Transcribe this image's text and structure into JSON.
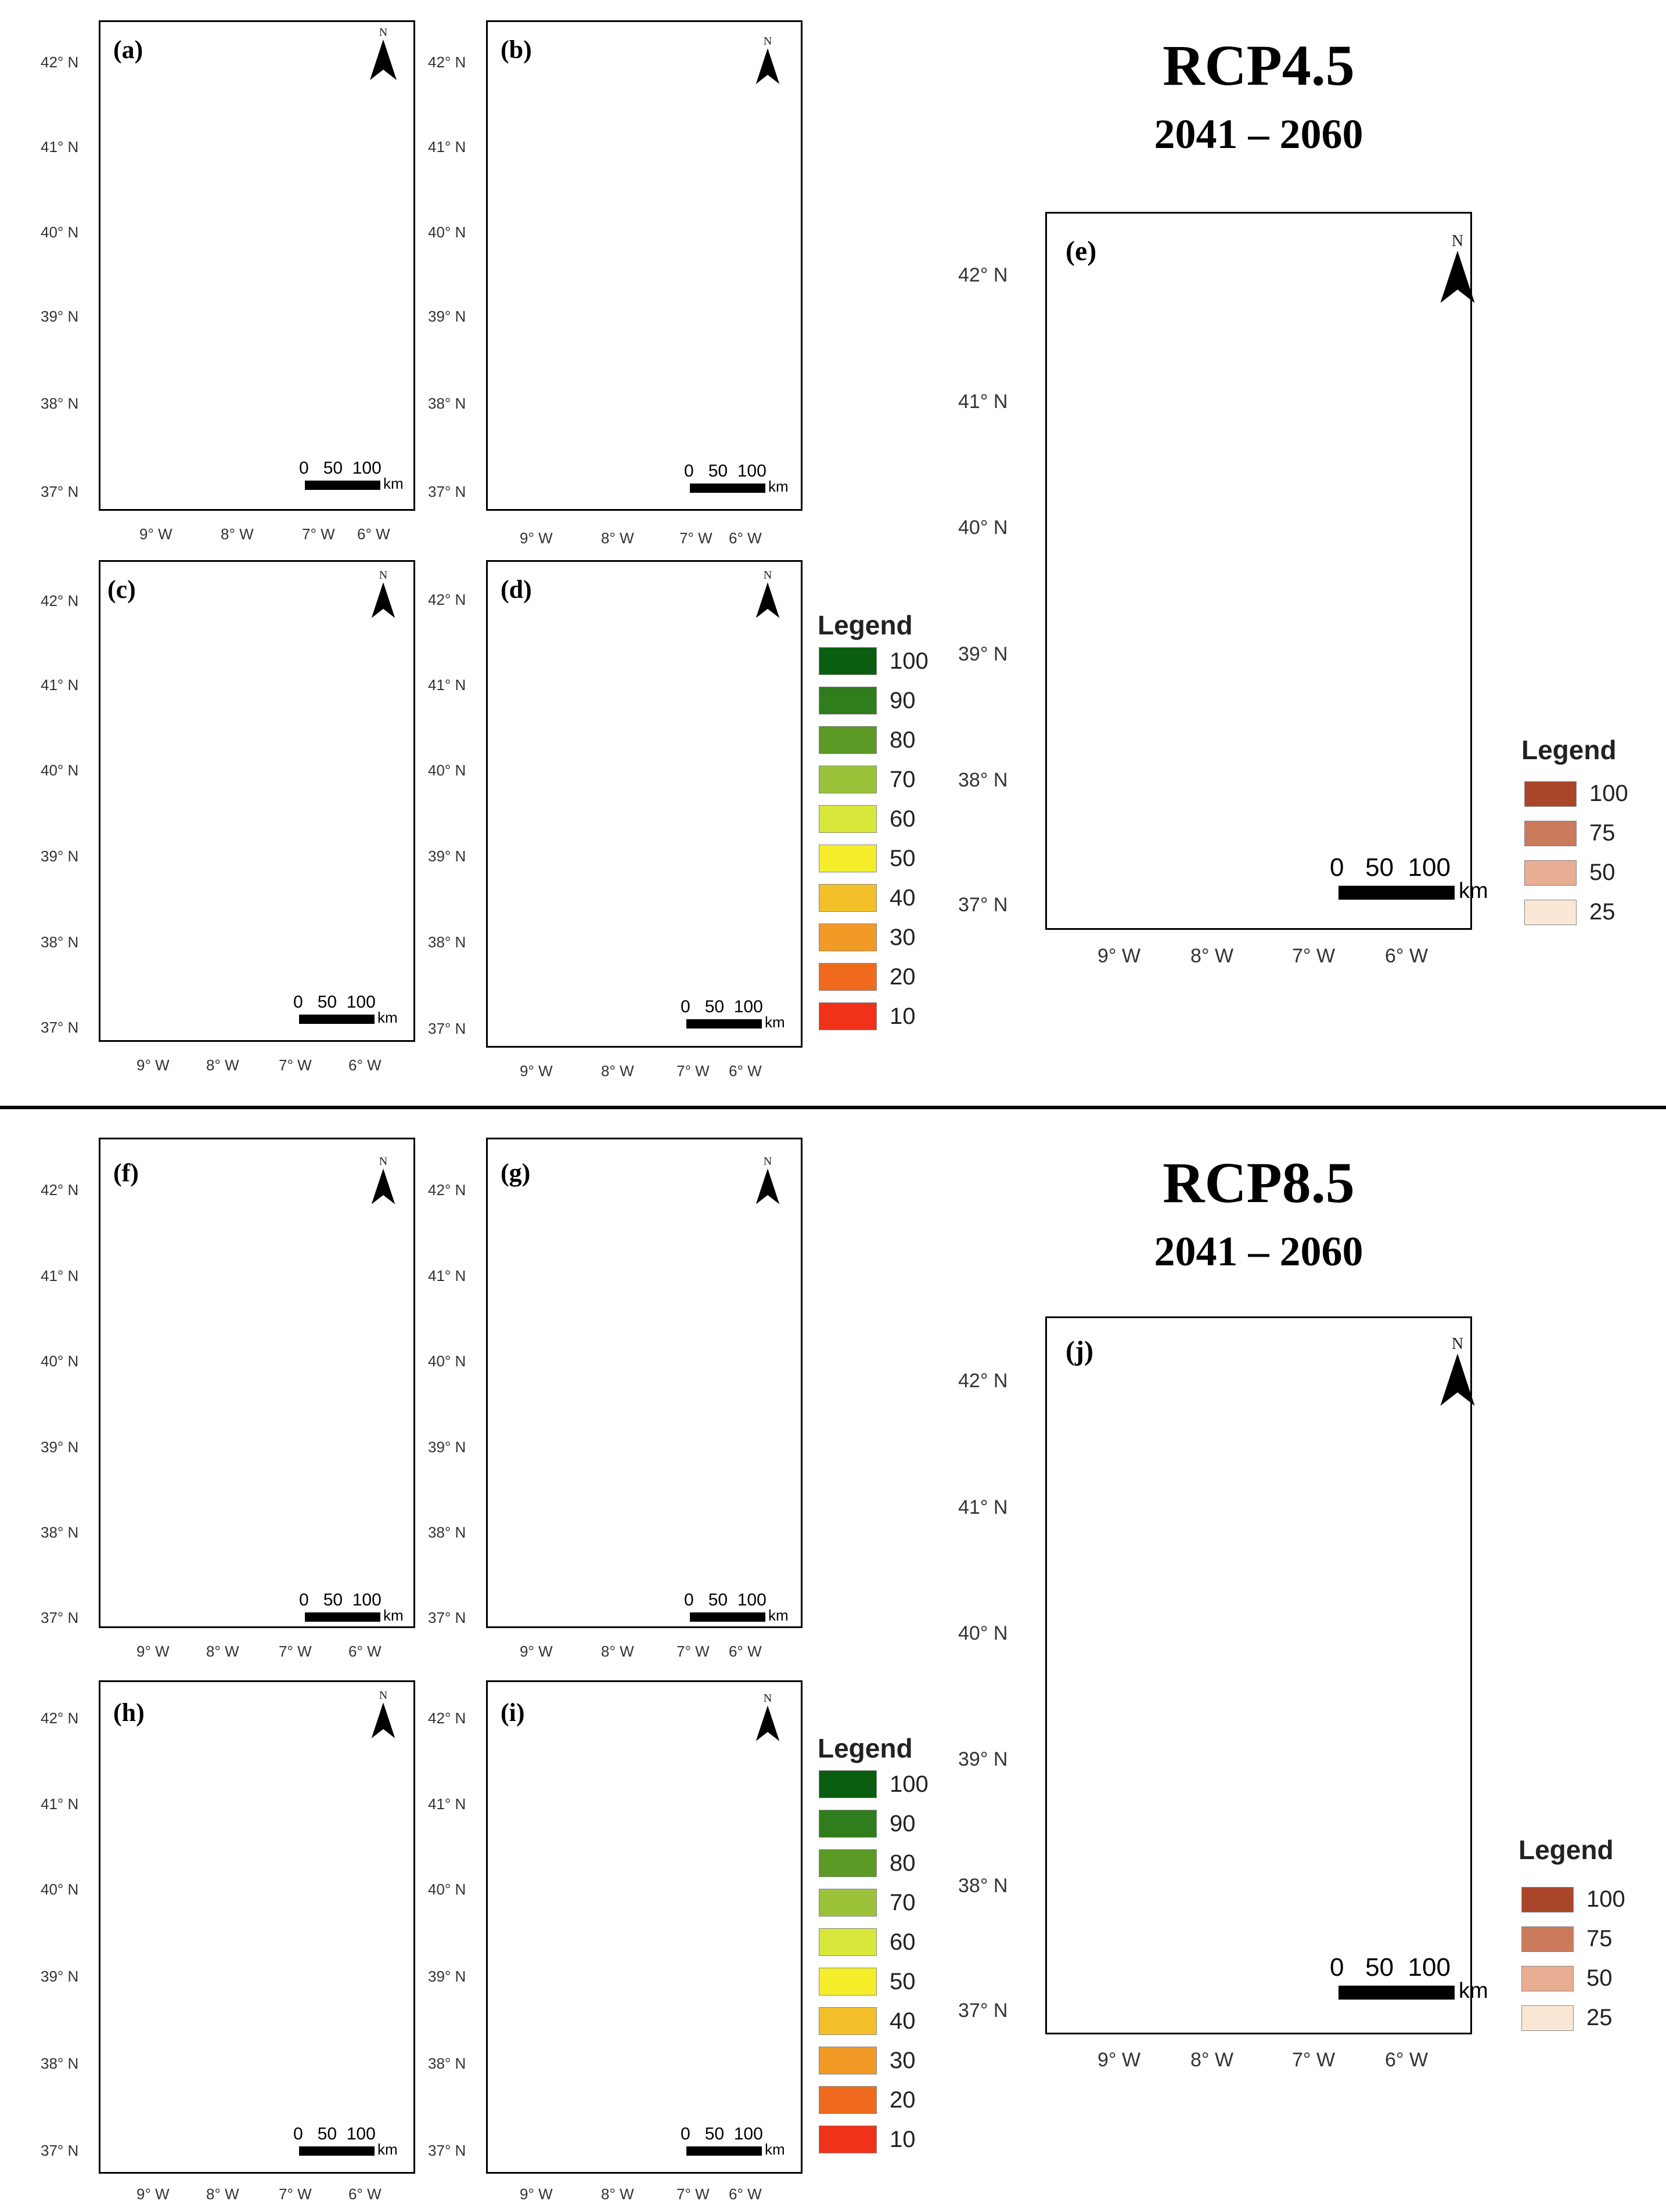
{
  "panels": {
    "a": {
      "label": "(a)"
    },
    "b": {
      "label": "(b)"
    },
    "c": {
      "label": "(c)"
    },
    "d": {
      "label": "(d)"
    },
    "e": {
      "label": "(e)"
    },
    "f": {
      "label": "(f)"
    },
    "g": {
      "label": "(g)"
    },
    "h": {
      "label": "(h)"
    },
    "i": {
      "label": "(i)"
    },
    "j": {
      "label": "(j)"
    }
  },
  "lat_labels": [
    "42° N",
    "41° N",
    "40° N",
    "39° N",
    "38° N",
    "37° N"
  ],
  "lon_labels": [
    "9° W",
    "8° W",
    "7° W",
    "6° W"
  ],
  "north_label": "N",
  "scale_bar": {
    "numbers": "0   50  100",
    "unit": "km"
  },
  "headings": {
    "rcp45_title": "RCP4.5",
    "rcp45_period": "2041 – 2060",
    "rcp85_title": "RCP8.5",
    "rcp85_period": "2041 – 2060"
  },
  "legend_green_red": {
    "title": "Legend",
    "items": [
      {
        "label": "100",
        "color": "#0b5e0f"
      },
      {
        "label": "90",
        "color": "#2f7d1c"
      },
      {
        "label": "80",
        "color": "#5a9a25"
      },
      {
        "label": "70",
        "color": "#9cc23a"
      },
      {
        "label": "60",
        "color": "#d8e83a"
      },
      {
        "label": "50",
        "color": "#f6ee2a"
      },
      {
        "label": "40",
        "color": "#f4c02a"
      },
      {
        "label": "30",
        "color": "#f29a26"
      },
      {
        "label": "20",
        "color": "#f06a1e"
      },
      {
        "label": "10",
        "color": "#f0321a"
      }
    ]
  },
  "legend_brown": {
    "title": "Legend",
    "items": [
      {
        "label": "100",
        "color": "#a9472a"
      },
      {
        "label": "75",
        "color": "#cc7a5c"
      },
      {
        "label": "50",
        "color": "#e8ad93"
      },
      {
        "label": "25",
        "color": "#fae7d6"
      }
    ]
  }
}
